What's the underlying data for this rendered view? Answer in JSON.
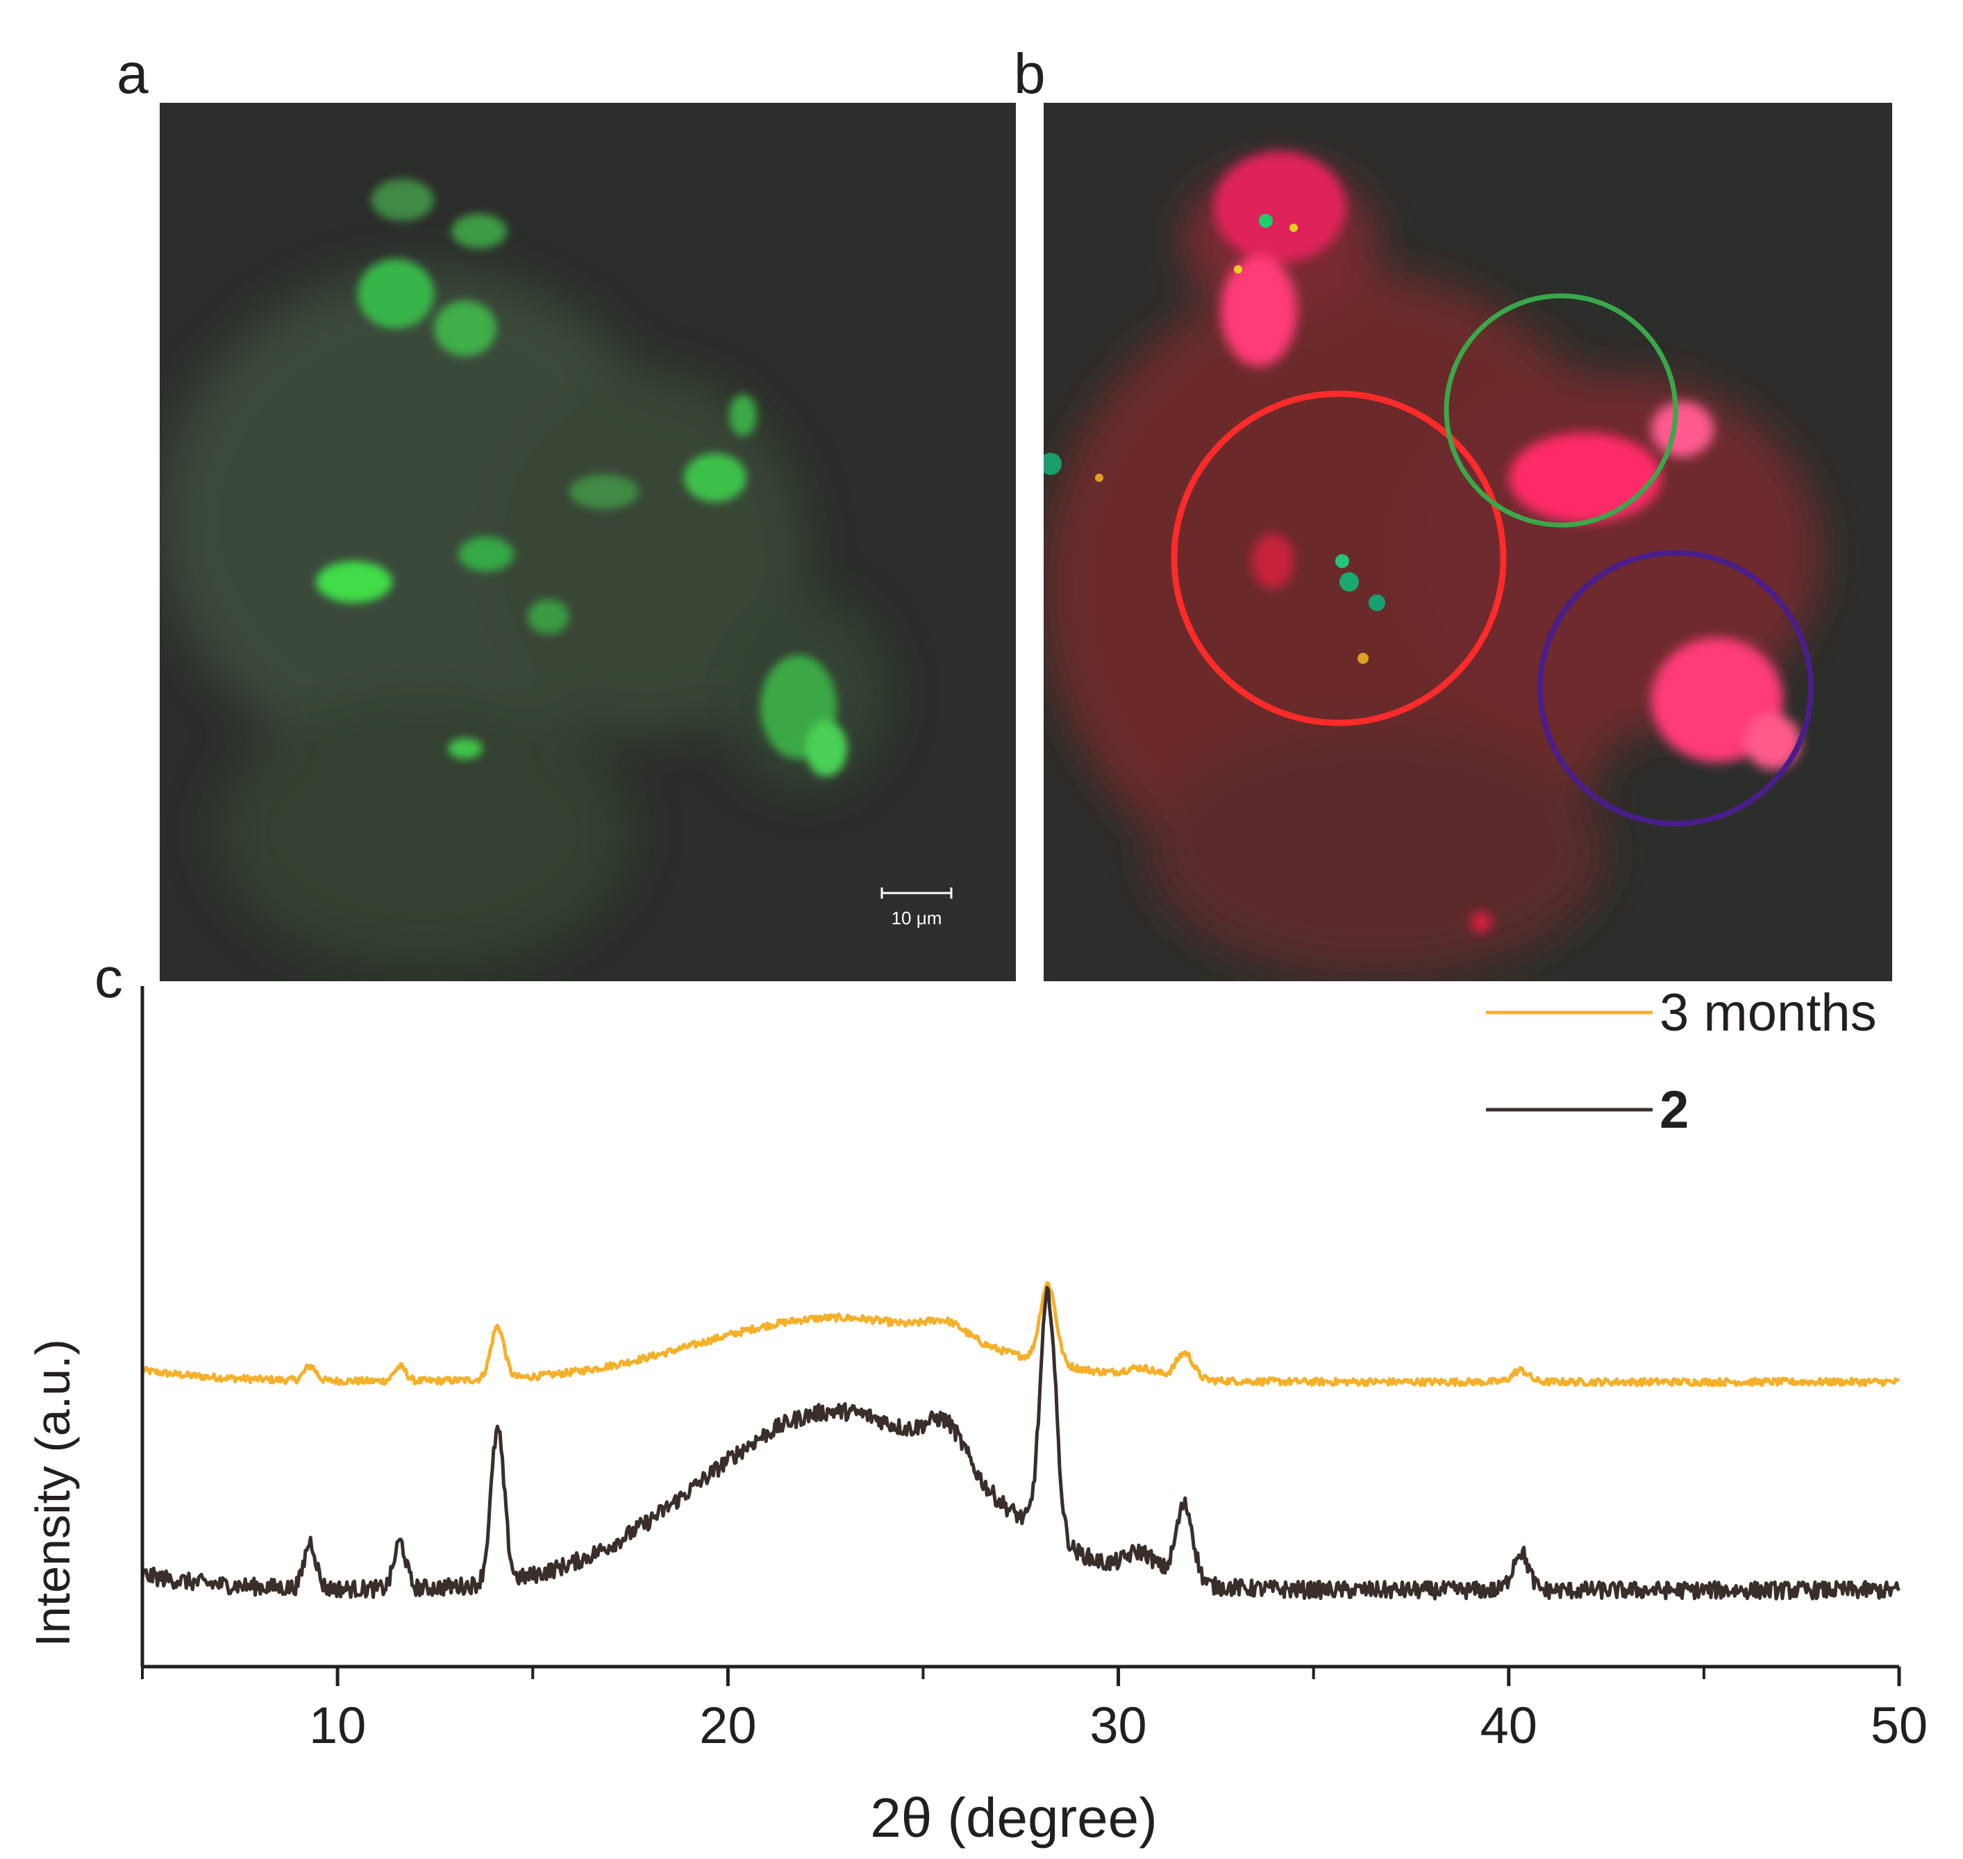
{
  "panels": {
    "a": {
      "label": "a",
      "scale_bar": "10 μm"
    },
    "b": {
      "label": "b"
    },
    "c": {
      "label": "c"
    }
  },
  "colors": {
    "background_dark": "#2b2e2a",
    "green_fluor": "#3fdc4a",
    "red_fluor": "#e0203a",
    "pink_fluor": "#ff3a78",
    "circle_red": "#ff2a2a",
    "circle_green": "#3aa84a",
    "circle_purple": "#4a1e8a",
    "series_3months": "#f5b02a",
    "series_2": "#3a2e2b"
  },
  "chart_data": {
    "type": "line",
    "title": "",
    "xlabel": "2θ (degree)",
    "ylabel": "Intensity (a.u.)",
    "xlim": [
      5,
      50
    ],
    "xticks": [
      10,
      20,
      30,
      40,
      50
    ],
    "xtick_labels": [
      "10",
      "20",
      "30",
      "40",
      "50"
    ],
    "y_ticks_shown": false,
    "legend": {
      "placement": "top-right",
      "entries": [
        {
          "label": "3 months",
          "bold": false
        },
        {
          "label": "2",
          "bold": true
        }
      ]
    },
    "series": [
      {
        "name": "3 months",
        "color": "#f5b02a",
        "baseline": 0.62,
        "noise": 0.012,
        "peaks": [
          [
            9.3,
            0.05,
            0.15
          ],
          [
            11.6,
            0.05,
            0.15
          ],
          [
            14.1,
            0.18,
            0.17
          ],
          [
            25.6,
            0.05,
            0.5
          ],
          [
            28.2,
            0.27,
            0.2
          ],
          [
            30.6,
            0.03,
            0.4
          ],
          [
            31.7,
            0.09,
            0.22
          ],
          [
            40.3,
            0.04,
            0.2
          ]
        ],
        "hump": [
          22.8,
          0.22,
          3.5
        ]
      },
      {
        "name": "2",
        "color": "#3a2e2b",
        "baseline": 0.0,
        "noise": 0.022,
        "peaks": [
          [
            9.3,
            0.12,
            0.15
          ],
          [
            11.6,
            0.12,
            0.15
          ],
          [
            14.1,
            0.39,
            0.17
          ],
          [
            25.6,
            0.1,
            0.5
          ],
          [
            28.2,
            0.62,
            0.2
          ],
          [
            30.6,
            0.06,
            0.4
          ],
          [
            31.7,
            0.2,
            0.22
          ],
          [
            40.3,
            0.1,
            0.2
          ]
        ],
        "hump": [
          22.8,
          0.46,
          3.5
        ]
      }
    ]
  }
}
